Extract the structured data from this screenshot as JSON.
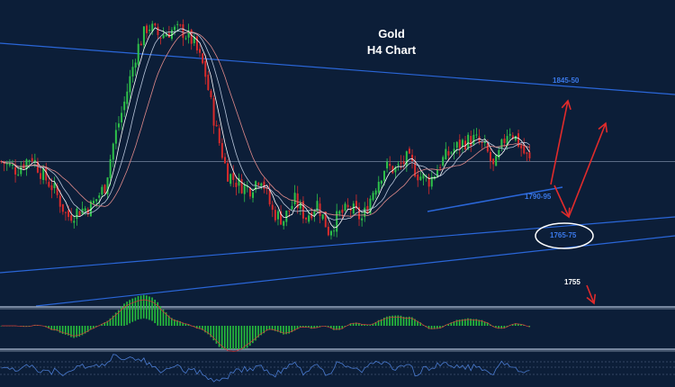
{
  "chart_data": {
    "type": "candlestick",
    "title": "Gold",
    "subtitle": "H4 Chart",
    "ylim": [
      1748,
      1858
    ],
    "levels": [
      {
        "label": "1845-50",
        "value": 1847.5,
        "color": "#3a78e8"
      },
      {
        "label": "1790-95",
        "value": 1792.5,
        "color": "#3a78e8"
      },
      {
        "label": "1765-75",
        "value": 1770,
        "color": "#3a78e8"
      },
      {
        "label": "1755",
        "value": 1755,
        "color": "#ffffff"
      }
    ],
    "current_price": 1800,
    "bars": 190,
    "anchors": [
      [
        0,
        1800
      ],
      [
        8,
        1797
      ],
      [
        16,
        1802
      ],
      [
        22,
        1795
      ],
      [
        28,
        1790
      ],
      [
        35,
        1780
      ],
      [
        40,
        1782
      ],
      [
        48,
        1784
      ],
      [
        55,
        1791
      ],
      [
        60,
        1808
      ],
      [
        65,
        1820
      ],
      [
        72,
        1840
      ],
      [
        78,
        1849
      ],
      [
        84,
        1845
      ],
      [
        90,
        1847
      ],
      [
        96,
        1847
      ],
      [
        102,
        1843
      ],
      [
        108,
        1833
      ],
      [
        114,
        1812
      ],
      [
        120,
        1796
      ],
      [
        126,
        1792
      ],
      [
        132,
        1790
      ],
      [
        138,
        1795
      ],
      [
        144,
        1782
      ],
      [
        150,
        1779
      ],
      [
        156,
        1786
      ],
      [
        162,
        1780
      ],
      [
        168,
        1785
      ],
      [
        174,
        1775
      ],
      [
        180,
        1781
      ],
      [
        186,
        1783
      ],
      [
        192,
        1779
      ],
      [
        198,
        1790
      ],
      [
        204,
        1798
      ],
      [
        210,
        1797
      ],
      [
        216,
        1801
      ],
      [
        222,
        1795
      ],
      [
        228,
        1793
      ],
      [
        234,
        1800
      ],
      [
        240,
        1804
      ],
      [
        246,
        1807
      ],
      [
        252,
        1808
      ],
      [
        258,
        1804
      ],
      [
        262,
        1797
      ],
      [
        266,
        1805
      ],
      [
        270,
        1812
      ],
      [
        274,
        1808
      ],
      [
        278,
        1803
      ],
      [
        281,
        1800
      ]
    ],
    "colors": {
      "up": "#2ec24a",
      "down": "#d92b2b",
      "ma1": "#ffffff",
      "ma2": "#e08a8a",
      "trend": "#2a66d8",
      "arrow": "#e12b2b",
      "macd": "#27c13c",
      "rsi": "#4a7bd1"
    }
  }
}
